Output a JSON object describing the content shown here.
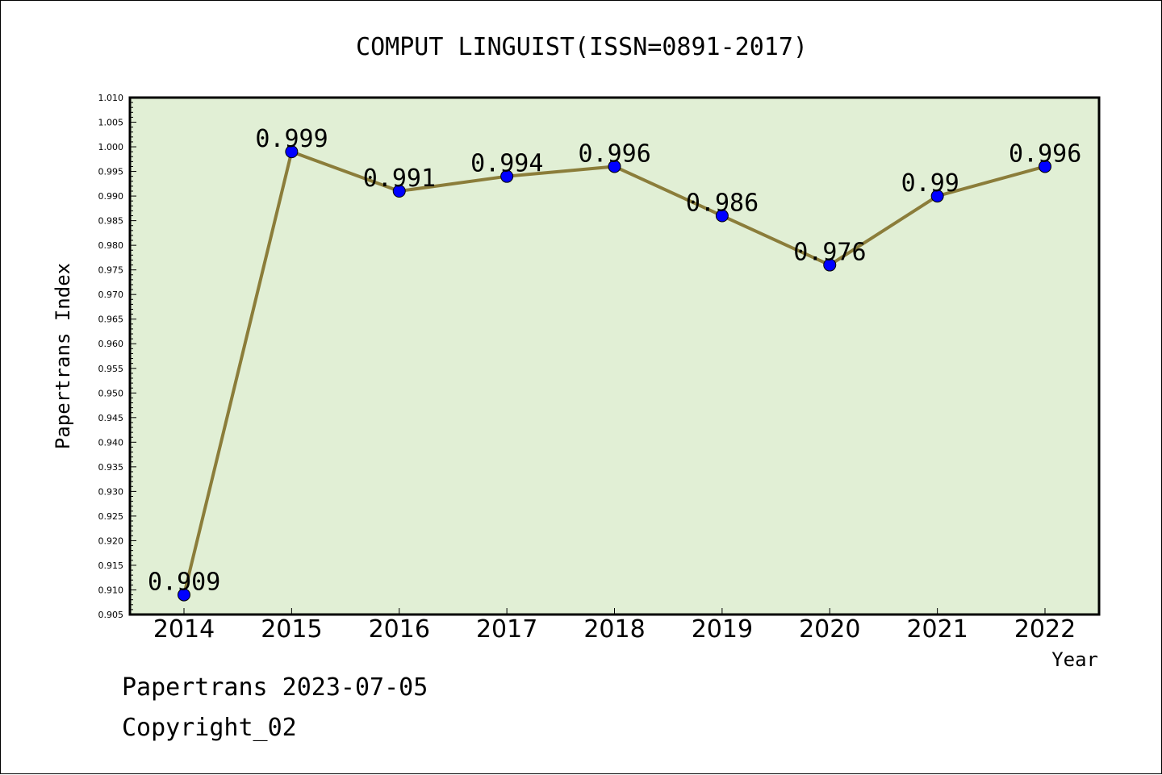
{
  "chart_data": {
    "type": "line",
    "title": "COMPUT LINGUIST(ISSN=0891-2017)",
    "xlabel": "Year",
    "ylabel": "Papertrans Index",
    "categories": [
      "2014",
      "2015",
      "2016",
      "2017",
      "2018",
      "2019",
      "2020",
      "2021",
      "2022"
    ],
    "values": [
      0.909,
      0.999,
      0.991,
      0.994,
      0.996,
      0.986,
      0.976,
      0.99,
      0.996
    ],
    "data_labels": [
      "0.909",
      "0.999",
      "0.991",
      "0.994",
      "0.996",
      "0.986",
      "0.976",
      "0.99",
      "0.996"
    ],
    "ylim": [
      0.905,
      1.01
    ],
    "yticks": [
      "0.905",
      "0.910",
      "0.915",
      "0.920",
      "0.925",
      "0.930",
      "0.935",
      "0.940",
      "0.945",
      "0.950",
      "0.955",
      "0.960",
      "0.965",
      "0.970",
      "0.975",
      "0.980",
      "0.985",
      "0.990",
      "0.995",
      "1.000",
      "1.005",
      "1.010"
    ],
    "grid": false,
    "colors": {
      "plot_background": "#e1efd5",
      "line": "#8b7d3a",
      "marker": "#0000ff"
    }
  },
  "footer": {
    "date_line": "Papertrans 2023-07-05",
    "copyright": "Copyright_02"
  }
}
